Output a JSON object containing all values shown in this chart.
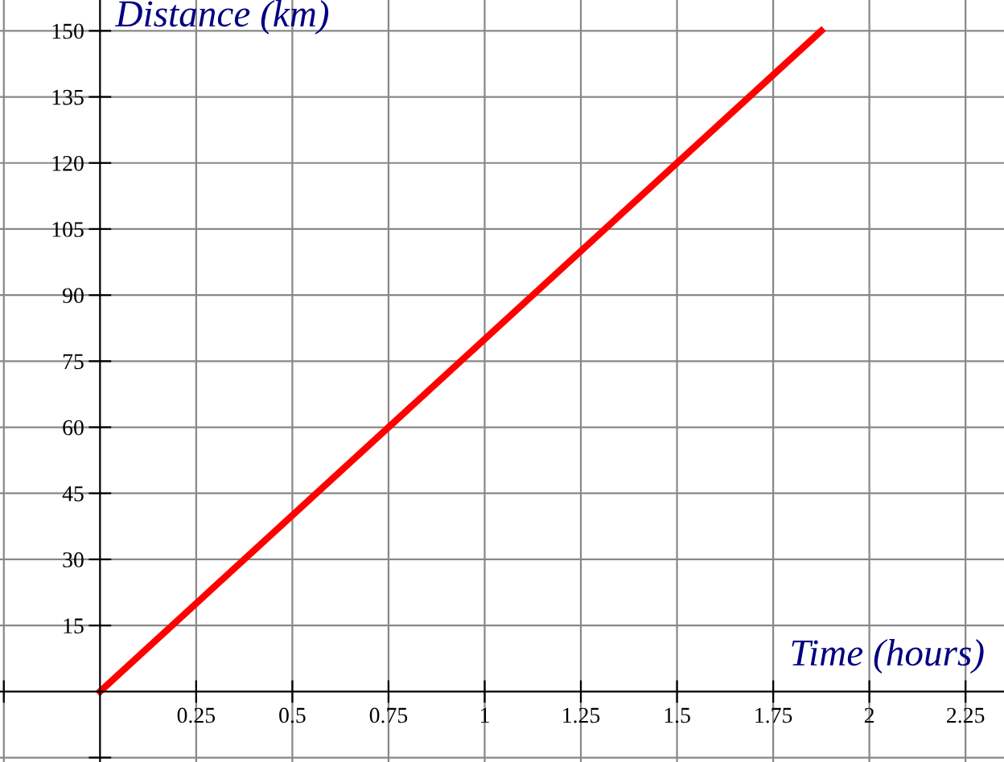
{
  "chart_data": {
    "type": "line",
    "xlabel": "Time (hours)",
    "ylabel": "Distance (km)",
    "x": [
      0,
      1.875
    ],
    "series": [
      {
        "color": "#ff0000",
        "values": [
          0,
          150
        ]
      }
    ],
    "xlim": [
      -0.26,
      2.35
    ],
    "ylim": [
      -16,
      157
    ],
    "xticks": [
      {
        "value": -0.25,
        "label": null
      },
      0.25,
      0.5,
      0.75,
      1,
      1.25,
      1.5,
      1.75,
      2,
      2.25
    ],
    "yticks": [
      {
        "value": -15,
        "label": null
      },
      15,
      30,
      45,
      60,
      75,
      90,
      105,
      120,
      135,
      150
    ],
    "grid": true,
    "marker": "none",
    "line_style": "solid"
  }
}
